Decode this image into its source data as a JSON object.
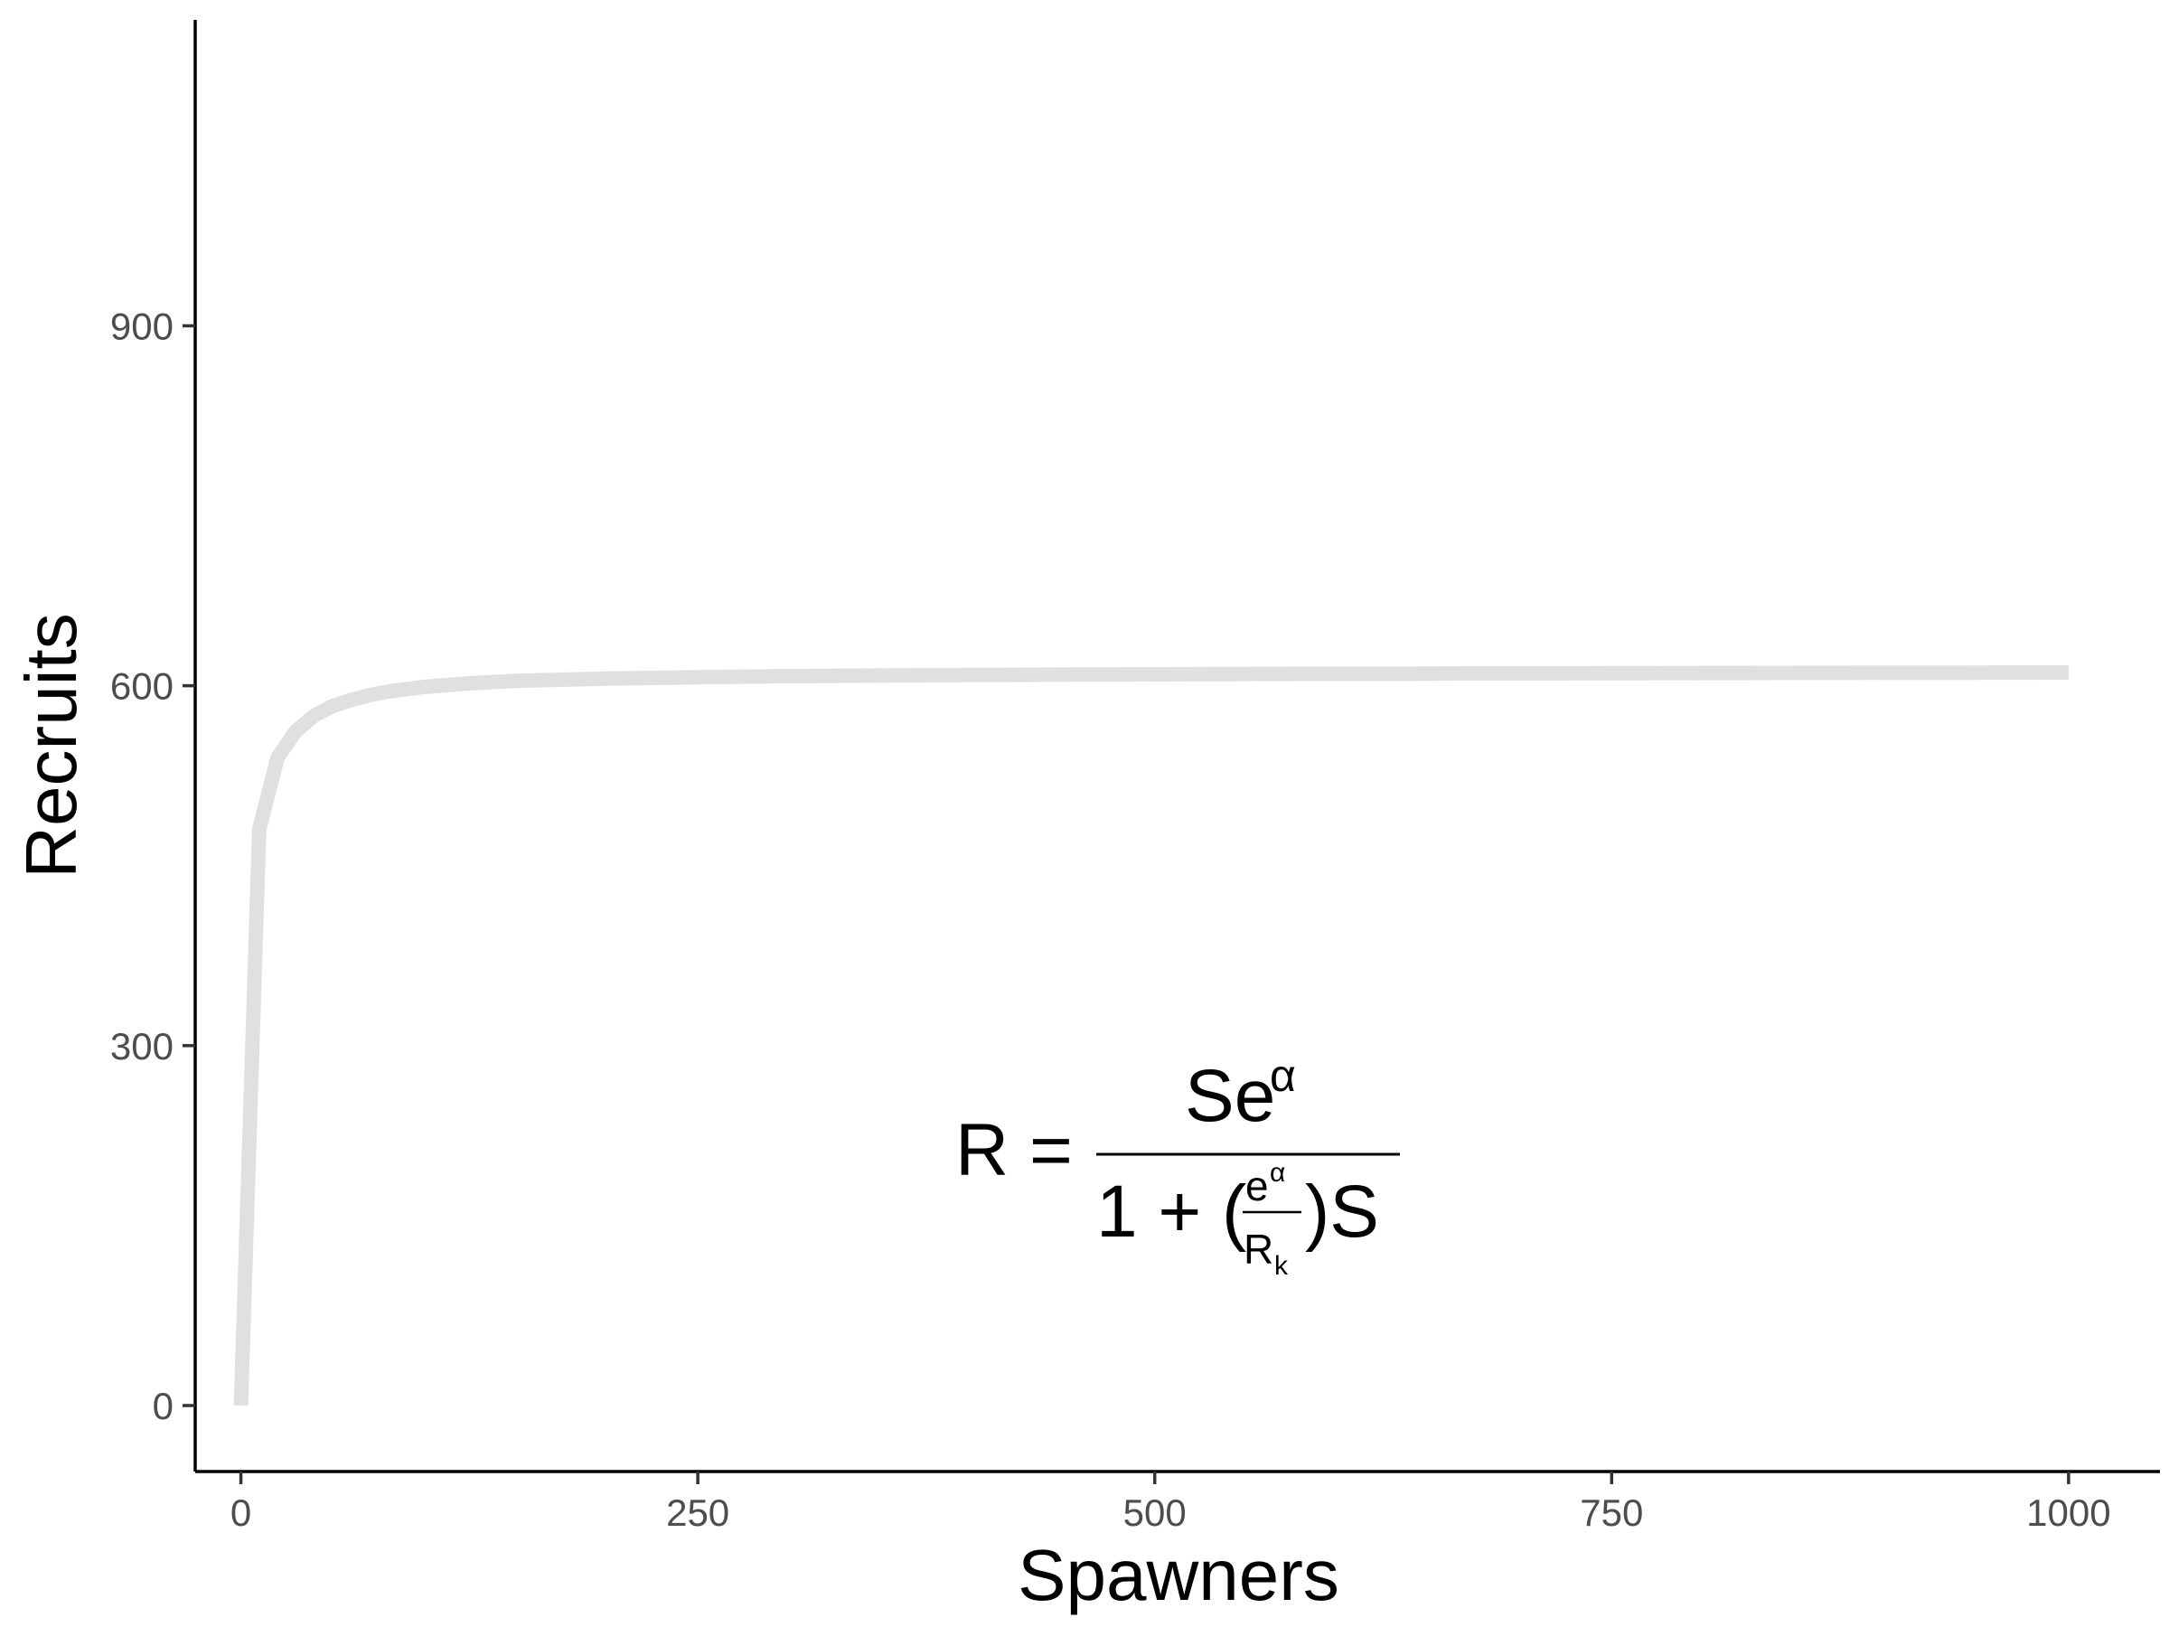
{
  "chart_data": {
    "type": "line",
    "title": "",
    "xlabel": "Spawners",
    "ylabel": "Recruits",
    "xlim": [
      -25,
      1050
    ],
    "ylim": [
      -55,
      1155
    ],
    "x_ticks": [
      0,
      250,
      500,
      750,
      1000
    ],
    "y_ticks": [
      0,
      300,
      600,
      900
    ],
    "x_tick_labels": [
      "0",
      "250",
      "500",
      "750",
      "1000"
    ],
    "y_tick_labels": [
      "0",
      "300",
      "600",
      "900"
    ],
    "grid": false,
    "legend": "none",
    "series": [
      {
        "color": "#e0e0e0",
        "x": [
          0,
          10,
          20,
          30,
          40,
          50,
          60,
          70,
          80,
          90,
          100,
          125,
          150,
          200,
          250,
          300,
          400,
          500,
          600,
          700,
          800,
          900,
          1000
        ],
        "y": [
          0,
          480,
          540,
          562,
          575,
          583,
          588,
          592,
          595,
          597,
          599,
          602,
          604,
          606,
          607,
          608,
          609,
          609.5,
          610,
          610.3,
          610.6,
          610.8,
          611
        ]
      }
    ],
    "annotation": {
      "lhs": "R =",
      "numerator": "Se",
      "numerator_sup": "α",
      "denominator_prefix": "1 + (",
      "inner_numerator": "e",
      "inner_numerator_sup": "α",
      "inner_denominator": "R",
      "inner_denominator_sub": "k",
      "denominator_suffix": ")S"
    }
  }
}
